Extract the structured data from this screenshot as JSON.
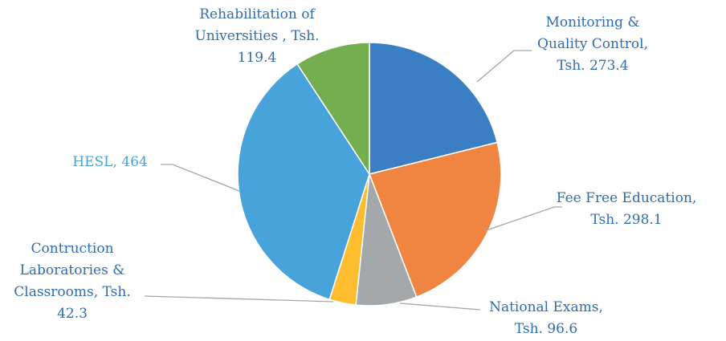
{
  "chart_data": {
    "type": "pie",
    "categories": [
      "Monitoring & Quality Control,",
      "Fee Free Education,",
      "National Exams,",
      "Contruction Laboratories & Classrooms,",
      "HESL,",
      "Rehabilitation of Universities ,"
    ],
    "values": [
      273.4,
      298.1,
      96.6,
      42.3,
      464,
      119.4
    ],
    "value_labels": [
      "Tsh. 273.4",
      "Tsh. 298.1",
      "Tsh. 96.6",
      "Tsh. 42.3",
      "464",
      "Tsh. 119.4"
    ],
    "colors": [
      "#3a7ec4",
      "#ef8540",
      "#a5a8aa",
      "#fdbd2e",
      "#47a3d9",
      "#74ae4f"
    ],
    "label_colors": [
      "#2f6db0",
      "#2f6db0",
      "#2f6db0",
      "#2f6db0",
      "#47a3d9",
      "#2f6db0"
    ]
  }
}
